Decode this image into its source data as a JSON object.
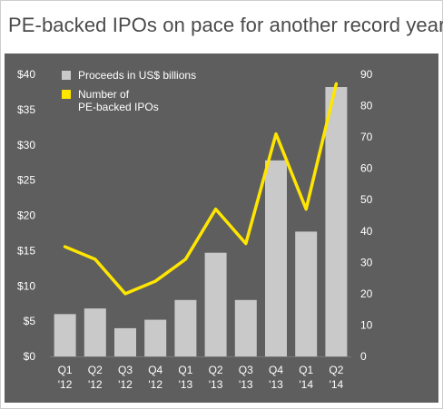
{
  "title": "PE-backed IPOs on pace for another record year",
  "colors": {
    "panel_bg": "#5e5e5e",
    "bar": "#c9c9c9",
    "line": "#ffe600",
    "text": "#ffffff",
    "title": "#4a4a4a"
  },
  "chart_data": {
    "type": "bar",
    "title": "PE-backed IPOs on pace for another record year",
    "categories": [
      "Q1 '12",
      "Q2 '12",
      "Q3 '12",
      "Q4 '12",
      "Q1 '13",
      "Q2 '13",
      "Q3 '13",
      "Q4 '13",
      "Q1 '14",
      "Q2 '14"
    ],
    "category_lines": [
      [
        "Q1",
        "'12"
      ],
      [
        "Q2",
        "'12"
      ],
      [
        "Q3",
        "'12"
      ],
      [
        "Q4",
        "'12"
      ],
      [
        "Q1",
        "'13"
      ],
      [
        "Q2",
        "'13"
      ],
      [
        "Q3",
        "'13"
      ],
      [
        "Q4",
        "'13"
      ],
      [
        "Q1",
        "'14"
      ],
      [
        "Q2",
        "'14"
      ]
    ],
    "series": [
      {
        "name": "Proceeds in US$ billions",
        "type": "bar",
        "axis": "left",
        "values": [
          6.0,
          6.8,
          4.0,
          5.2,
          8.0,
          14.7,
          8.0,
          27.8,
          17.7,
          38.2
        ]
      },
      {
        "name": "Number of PE-backed IPOs",
        "name_lines": [
          "Number of",
          "PE-backed IPOs"
        ],
        "type": "line",
        "axis": "right",
        "values": [
          35,
          31,
          20,
          24,
          31,
          47,
          36,
          71,
          47,
          87
        ]
      }
    ],
    "y_left": {
      "ylim": [
        0,
        40
      ],
      "ticks": [
        0,
        5,
        10,
        15,
        20,
        25,
        30,
        35,
        40
      ],
      "tick_labels": [
        "$0",
        "$5",
        "$10",
        "$15",
        "$20",
        "$25",
        "$30",
        "$35",
        "$40"
      ]
    },
    "y_right": {
      "ylim": [
        0,
        90
      ],
      "ticks": [
        0,
        10,
        20,
        30,
        40,
        50,
        60,
        70,
        80,
        90
      ],
      "tick_labels": [
        "0",
        "10",
        "20",
        "30",
        "40",
        "50",
        "60",
        "70",
        "80",
        "90"
      ]
    },
    "legend_position": "top-left",
    "grid": false
  }
}
